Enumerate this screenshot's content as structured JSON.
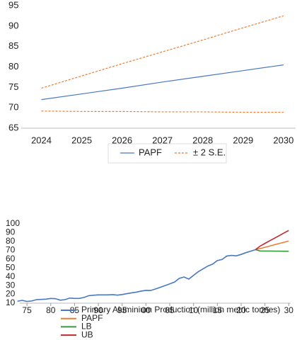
{
  "chart_data": [
    {
      "type": "line",
      "x": [
        2024,
        2025,
        2026,
        2027,
        2028,
        2029,
        2030
      ],
      "xlim": [
        2023.5,
        2030.3
      ],
      "xticks": [
        2024,
        2025,
        2026,
        2027,
        2028,
        2029,
        2030
      ],
      "ylim": [
        65,
        95
      ],
      "yticks": [
        65,
        70,
        75,
        80,
        85,
        90,
        95
      ],
      "legend": "bottom",
      "series": [
        {
          "name": "PAPF",
          "color": "#4a78c2",
          "values": [
            72,
            73.4,
            74.8,
            76.3,
            77.7,
            79.1,
            80.5
          ]
        },
        {
          "name": "± 2 S.E.",
          "color": "#ed7d31",
          "dashed": true,
          "values": [
            74.8,
            77.8,
            80.8,
            83.7,
            86.6,
            89.6,
            92.5
          ],
          "lower": [
            69.2,
            69.1,
            69.1,
            69.0,
            69.0,
            68.9,
            68.9
          ]
        }
      ]
    },
    {
      "type": "line",
      "xlim": [
        1973.5,
        2030.4
      ],
      "xticks": [
        {
          "value": 1975,
          "label": "75"
        },
        {
          "value": 1980,
          "label": "80"
        },
        {
          "value": 1985,
          "label": "85"
        },
        {
          "value": 1990,
          "label": "90"
        },
        {
          "value": 1995,
          "label": "95"
        },
        {
          "value": 2000,
          "label": "00"
        },
        {
          "value": 2005,
          "label": "05"
        },
        {
          "value": 2010,
          "label": "10"
        },
        {
          "value": 2015,
          "label": "15"
        },
        {
          "value": 2020,
          "label": "20"
        },
        {
          "value": 2025,
          "label": "25"
        },
        {
          "value": 2030,
          "label": "30"
        }
      ],
      "ylim": [
        10,
        100
      ],
      "yticks": [
        10,
        20,
        30,
        40,
        50,
        60,
        70,
        80,
        90,
        100
      ],
      "legend": "bottom-left",
      "series": [
        {
          "name": "Primary Aluminium Production (million metric tonnes)",
          "color": "#4a78c2",
          "x": [
            1973,
            1974,
            1975,
            1976,
            1977,
            1978,
            1979,
            1980,
            1981,
            1982,
            1983,
            1984,
            1985,
            1986,
            1987,
            1988,
            1989,
            1990,
            1991,
            1992,
            1993,
            1994,
            1995,
            1996,
            1997,
            1998,
            1999,
            2000,
            2001,
            2002,
            2003,
            2004,
            2005,
            2006,
            2007,
            2008,
            2009,
            2010,
            2011,
            2012,
            2013,
            2014,
            2015,
            2016,
            2017,
            2018,
            2019,
            2020,
            2021,
            2022,
            2023
          ],
          "values": [
            12.2,
            13.2,
            12.0,
            12.5,
            14.0,
            14.3,
            14.6,
            15.4,
            15.1,
            13.4,
            14.0,
            15.8,
            15.4,
            15.4,
            16.5,
            18.5,
            19.0,
            19.4,
            19.4,
            19.4,
            19.7,
            19.1,
            19.8,
            20.8,
            21.7,
            22.5,
            23.7,
            24.5,
            24.4,
            26.1,
            28.0,
            29.9,
            31.9,
            33.9,
            38.1,
            39.7,
            37.3,
            41.5,
            45.7,
            48.9,
            52.1,
            54.3,
            58.3,
            59.6,
            63.5,
            64.2,
            63.7,
            65.3,
            67.3,
            69.0,
            70.7
          ]
        },
        {
          "name": "PAPF",
          "color": "#ed7d31",
          "x": [
            2023,
            2024,
            2025,
            2026,
            2027,
            2028,
            2029,
            2030
          ],
          "values": [
            70.7,
            72,
            73.4,
            74.8,
            76.3,
            77.7,
            79.1,
            80.5
          ]
        },
        {
          "name": "LB",
          "color": "#3a9a3a",
          "x": [
            2023,
            2024,
            2025,
            2026,
            2027,
            2028,
            2029,
            2030
          ],
          "values": [
            70.7,
            69.2,
            69.1,
            69.1,
            69.0,
            69.0,
            68.9,
            68.9
          ]
        },
        {
          "name": "UB",
          "color": "#c0282d",
          "x": [
            2023,
            2024,
            2025,
            2026,
            2027,
            2028,
            2029,
            2030
          ],
          "values": [
            70.7,
            74.8,
            77.8,
            80.8,
            83.7,
            86.6,
            89.6,
            92.5
          ]
        }
      ]
    }
  ]
}
